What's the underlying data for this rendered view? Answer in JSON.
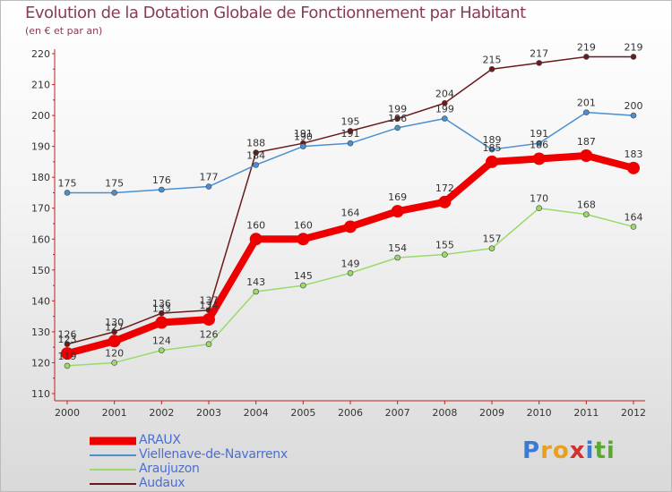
{
  "title": "Evolution de la Dotation Globale de Fonctionnement par Habitant",
  "subtitle": "(en € et par an)",
  "logo_text": "Proxiti",
  "logo_letters": [
    "P",
    "r",
    "o",
    "x",
    "i",
    "t",
    "i"
  ],
  "chart_data": {
    "type": "line",
    "title": "Evolution de la Dotation Globale de Fonctionnement par Habitant",
    "ylabel": "(en € et par an)",
    "xlabel": "",
    "ylim": [
      110,
      220
    ],
    "yticks": [
      "110",
      "120",
      "130",
      "140",
      "150",
      "160",
      "170",
      "180",
      "190",
      "200",
      "210",
      "220"
    ],
    "x": [
      "2000",
      "2001",
      "2002",
      "2003",
      "2004",
      "2005",
      "2006",
      "2007",
      "2008",
      "2009",
      "2010",
      "2011",
      "2012"
    ],
    "series": [
      {
        "name": "Audaux",
        "color": "#6b1a1a",
        "values": [
          126,
          130,
          136,
          137,
          188,
          191,
          195,
          199,
          204,
          215,
          217,
          219,
          219
        ]
      },
      {
        "name": "Viellenave-de-Navarrenx",
        "color": "#4a8fd0",
        "values": [
          175,
          175,
          176,
          177,
          184,
          190,
          191,
          196,
          199,
          189,
          191,
          201,
          200
        ]
      },
      {
        "name": "Araujuzon",
        "color": "#9ad96a",
        "values": [
          119,
          120,
          124,
          126,
          143,
          145,
          149,
          154,
          155,
          157,
          170,
          168,
          164
        ]
      },
      {
        "name": "ARAUX",
        "color": "#ee0000",
        "values": [
          123,
          127,
          133,
          134,
          160,
          160,
          164,
          169,
          172,
          185,
          186,
          187,
          183
        ]
      }
    ],
    "legend": [
      "ARAUX",
      "Viellenave-de-Navarrenx",
      "Araujuzon",
      "Audaux"
    ],
    "legend_position": "bottom-left",
    "grid": false
  }
}
